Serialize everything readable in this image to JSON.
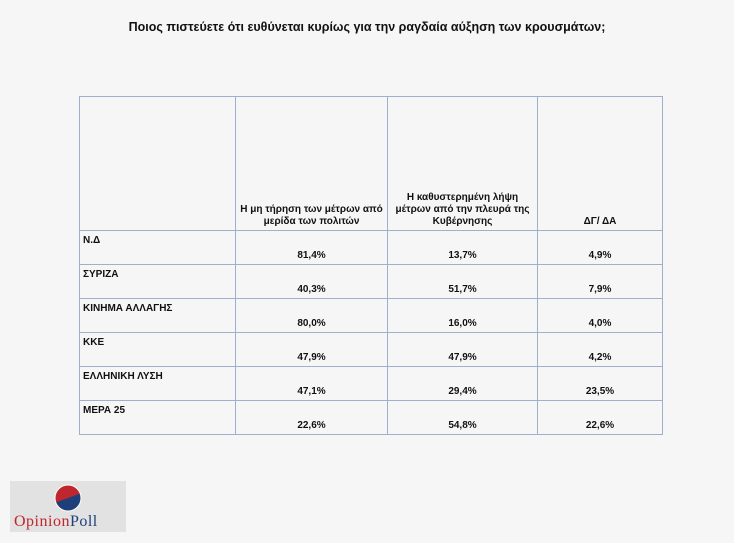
{
  "title": "Ποιος πιστεύετε ότι ευθύνεται κυρίως για την ραγδαία αύξηση των κρουσμάτων;",
  "table": {
    "headers": [
      "",
      "Η μη τήρηση των μέτρων από μερίδα των πολιτών",
      "Η καθυστερημένη λήψη μέτρων από την πλευρά της Κυβέρνησης",
      "ΔΓ/ ΔΑ"
    ],
    "rows": [
      {
        "party": "Ν.Δ",
        "values": [
          "81,4%",
          "13,7%",
          "4,9%"
        ]
      },
      {
        "party": "ΣΥΡΙΖΑ",
        "values": [
          "40,3%",
          "51,7%",
          "7,9%"
        ]
      },
      {
        "party": "ΚΙΝΗΜΑ ΑΛΛΑΓΗΣ",
        "values": [
          "80,0%",
          "16,0%",
          "4,0%"
        ]
      },
      {
        "party": "ΚΚΕ",
        "values": [
          "47,9%",
          "47,9%",
          "4,2%"
        ]
      },
      {
        "party": "ΕΛΛΗΝΙΚΗ ΛΥΣΗ",
        "values": [
          "47,1%",
          "29,4%",
          "23,5%"
        ]
      },
      {
        "party": "ΜΕΡΑ 25",
        "values": [
          "22,6%",
          "54,8%",
          "22,6%"
        ]
      }
    ]
  },
  "logo": {
    "part1": "Opinion",
    "part2": "Poll"
  }
}
